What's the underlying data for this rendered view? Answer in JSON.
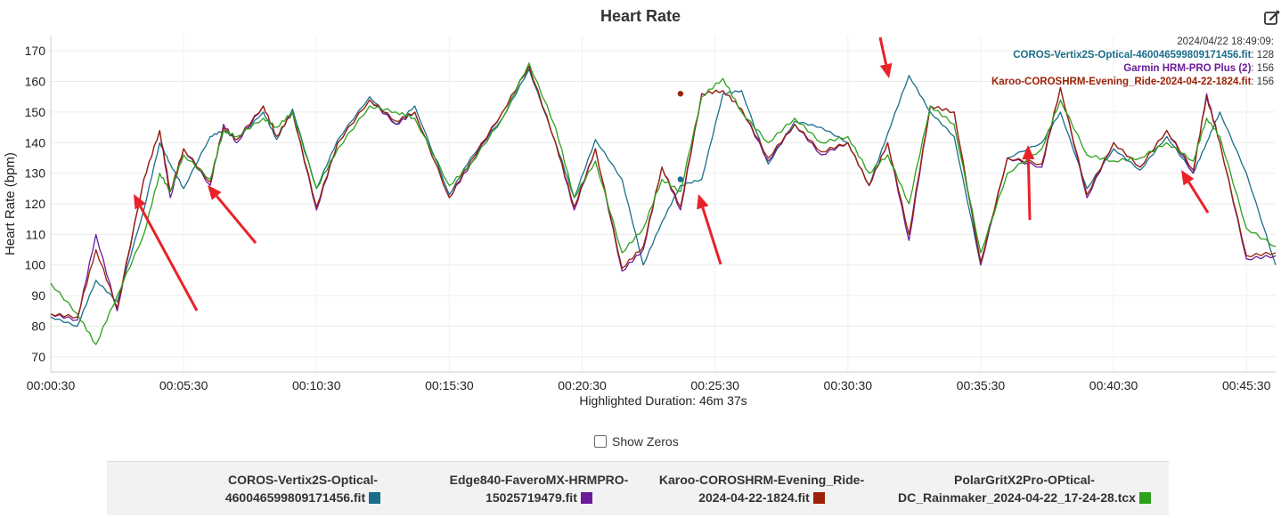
{
  "chart_data": {
    "type": "line",
    "title": "Heart Rate",
    "ylabel": "Heart Rate (bpm)",
    "xlabel": "Highlighted Duration: 46m 37s",
    "ylim": [
      65,
      175
    ],
    "xlim_min": [
      0.5,
      46.6
    ],
    "yticks": [
      "70",
      "80",
      "90",
      "100",
      "110",
      "120",
      "130",
      "140",
      "150",
      "160",
      "170"
    ],
    "xticks": [
      "00:00:30",
      "00:05:30",
      "00:10:30",
      "00:15:30",
      "00:20:30",
      "00:25:30",
      "00:30:30",
      "00:35:30",
      "00:40:30",
      "00:45:30"
    ],
    "grid": true,
    "x_minutes": [
      0.5,
      1.5,
      2.2,
      3.0,
      4.0,
      4.6,
      5.0,
      5.5,
      6.5,
      7.0,
      7.5,
      8.5,
      9.0,
      9.6,
      10.5,
      11.3,
      12.5,
      13.5,
      14.2,
      15.5,
      16.3,
      17.5,
      18.5,
      19.5,
      20.2,
      21.0,
      22.0,
      22.8,
      23.5,
      24.2,
      25.0,
      25.8,
      26.5,
      27.5,
      28.5,
      29.5,
      30.5,
      31.3,
      32.0,
      32.8,
      33.6,
      34.5,
      35.5,
      36.5,
      37.8,
      38.5,
      39.5,
      40.5,
      41.5,
      42.5,
      43.5,
      44.0,
      44.5,
      45.5,
      46.6
    ],
    "series": [
      {
        "name": "COROS-Vertix2S-Optical-460046599809171456.fit",
        "color": "#1a6e8a",
        "values": [
          83,
          80,
          95,
          88,
          118,
          140,
          133,
          125,
          142,
          144,
          141,
          150,
          141,
          151,
          125,
          141,
          155,
          146,
          152,
          123,
          135,
          148,
          164,
          140,
          122,
          141,
          128,
          100,
          114,
          126,
          128,
          156,
          157,
          133,
          147,
          145,
          140,
          126,
          143,
          162,
          150,
          142,
          100,
          135,
          140,
          150,
          125,
          138,
          131,
          142,
          130,
          140,
          150,
          130,
          100
        ]
      },
      {
        "name": "Garmin HRM-PRO Plus (2)",
        "color": "#6a1b9a",
        "values": [
          84,
          82,
          110,
          85,
          128,
          144,
          122,
          138,
          126,
          146,
          140,
          152,
          142,
          150,
          118,
          140,
          154,
          146,
          150,
          122,
          133,
          150,
          165,
          140,
          118,
          138,
          98,
          105,
          132,
          118,
          156,
          157,
          151,
          134,
          146,
          136,
          140,
          126,
          140,
          108,
          152,
          150,
          100,
          135,
          132,
          158,
          122,
          140,
          132,
          144,
          130,
          156,
          140,
          102,
          103
        ]
      },
      {
        "name": "Karoo-COROSHRM-Evening_Ride-2024-04-22-1824.fit",
        "color": "#9b2208",
        "values": [
          84,
          83,
          105,
          86,
          128,
          144,
          124,
          138,
          127,
          145,
          141,
          152,
          142,
          150,
          119,
          140,
          154,
          147,
          150,
          122,
          134,
          150,
          165,
          140,
          119,
          138,
          99,
          106,
          132,
          119,
          156,
          157,
          151,
          135,
          146,
          137,
          140,
          126,
          140,
          110,
          152,
          150,
          101,
          135,
          133,
          158,
          123,
          140,
          132,
          144,
          131,
          155,
          140,
          103,
          104
        ]
      },
      {
        "name": "PolarGritX2Pro-OPtical-DC_Rainmaker_2024-04-22_17-24-28.tcx",
        "color": "#2e9f1c",
        "values": [
          94,
          84,
          74,
          90,
          110,
          130,
          124,
          136,
          128,
          144,
          142,
          148,
          145,
          150,
          125,
          138,
          152,
          150,
          148,
          126,
          133,
          148,
          166,
          145,
          122,
          134,
          104,
          112,
          128,
          124,
          155,
          161,
          150,
          140,
          148,
          140,
          142,
          130,
          136,
          120,
          152,
          146,
          104,
          130,
          138,
          154,
          136,
          134,
          135,
          140,
          134,
          148,
          142,
          112,
          106
        ]
      }
    ]
  },
  "tooltip": {
    "time": "2024/04/22 18:49:09:",
    "lines": [
      {
        "name": "COROS-Vertix2S-Optical-460046599809171456.fit",
        "value": "128",
        "color": "#1a6e8a"
      },
      {
        "name": "Garmin HRM-PRO Plus (2)",
        "value": "156",
        "color": "#6a1b9a"
      },
      {
        "name": "Karoo-COROSHRM-Evening_Ride-2024-04-22-1824.fit",
        "value": "156",
        "color": "#9b2208"
      }
    ]
  },
  "legend": [
    {
      "line1": "COROS-Vertix2S-Optical-",
      "line2": "460046599809171456.fit",
      "color": "#1a6e8a"
    },
    {
      "line1": "Edge840-FaveroMX-HRMPRO-",
      "line2": "15025719479.fit",
      "color": "#6a1b9a"
    },
    {
      "line1": "Karoo-COROSHRM-Evening_Ride-",
      "line2": "2024-04-22-1824.fit",
      "color": "#9b2208"
    },
    {
      "line1": "PolarGritX2Pro-OPtical-",
      "line2": "DC_Rainmaker_2024-04-22_17-24-28.tcx",
      "color": "#2e9f1c"
    }
  ],
  "controls": {
    "show_zeros_label": "Show Zeros",
    "edit_icon": "edit-icon"
  },
  "annotation_color": "#e8222a"
}
